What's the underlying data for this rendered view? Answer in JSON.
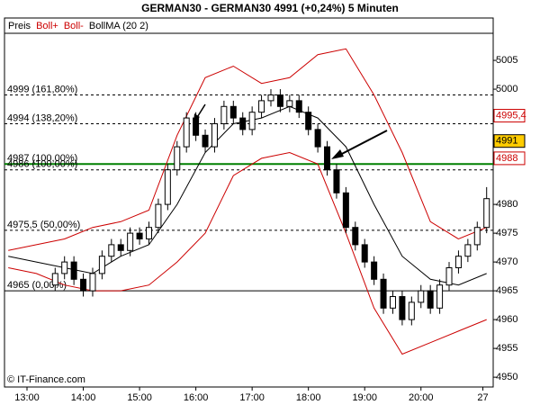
{
  "chart_data": {
    "type": "candlestick",
    "title": "GERMAN30 - GERMAN30     4991 (+0,24%)     5 Minuten",
    "legend": [
      "Preis",
      "Boll+",
      "Boll-",
      "BollMA (20 2)"
    ],
    "legend_colors": [
      "#000000",
      "#cc0000",
      "#cc0000",
      "#000000"
    ],
    "watermark": "© IT-Finance.com",
    "xlim": [
      756,
      1277
    ],
    "xticks": [
      {
        "value": 780,
        "label": "13:00"
      },
      {
        "value": 840,
        "label": "14:00"
      },
      {
        "value": 900,
        "label": "15:00"
      },
      {
        "value": 960,
        "label": "16:00"
      },
      {
        "value": 1020,
        "label": "17:00"
      },
      {
        "value": 1080,
        "label": "18:00"
      },
      {
        "value": 1140,
        "label": "19:00"
      },
      {
        "value": 1200,
        "label": "20:00"
      },
      {
        "value": 1266,
        "label": "27"
      }
    ],
    "ylim": [
      4948.3,
      5009.7
    ],
    "yticks": [
      4950,
      4955,
      4960,
      4965,
      4970,
      4975,
      4980,
      5000,
      5005
    ],
    "candles": {
      "x": [
        810,
        820,
        830,
        840,
        850,
        860,
        870,
        880,
        890,
        900,
        910,
        920,
        930,
        940,
        950,
        960,
        970,
        980,
        990,
        1000,
        1010,
        1020,
        1030,
        1040,
        1050,
        1060,
        1070,
        1080,
        1090,
        1100,
        1110,
        1120,
        1130,
        1140,
        1150,
        1160,
        1170,
        1180,
        1190,
        1200,
        1210,
        1220,
        1230,
        1240,
        1250,
        1260,
        1270
      ],
      "open": [
        4966,
        4968,
        4970,
        4967,
        4965,
        4968,
        4971,
        4973,
        4972,
        4975,
        4974,
        4976,
        4980,
        4986,
        4990,
        4995,
        4992,
        4990,
        4994,
        4997,
        4995,
        4993,
        4996,
        4998,
        4999,
        4997,
        4998,
        4996,
        4993,
        4990,
        4986,
        4982,
        4976,
        4973,
        4970,
        4967,
        4962,
        4964,
        4960,
        4963,
        4965,
        4962,
        4966,
        4969,
        4971,
        4973,
        4976
      ],
      "high": [
        4969,
        4971,
        4971,
        4968,
        4969,
        4972,
        4974,
        4974,
        4976,
        4976,
        4977,
        4981,
        4987,
        4991,
        4996,
        4996,
        4993,
        4995,
        4998,
        4998,
        4996,
        4997,
        4999,
        5000,
        5000,
        4999,
        4999,
        4997,
        4994,
        4991,
        4987,
        4983,
        4977,
        4974,
        4971,
        4968,
        4965,
        4965,
        4964,
        4966,
        4966,
        4967,
        4970,
        4972,
        4974,
        4977,
        4983
      ],
      "low": [
        4965,
        4967,
        4966,
        4964,
        4964,
        4967,
        4970,
        4971,
        4971,
        4973,
        4973,
        4975,
        4979,
        4985,
        4989,
        4991,
        4989,
        4989,
        4993,
        4994,
        4992,
        4992,
        4995,
        4997,
        4996,
        4996,
        4995,
        4992,
        4989,
        4985,
        4981,
        4975,
        4972,
        4969,
        4966,
        4961,
        4961,
        4959,
        4959,
        4962,
        4961,
        4961,
        4965,
        4968,
        4970,
        4972,
        4975
      ],
      "close": [
        4968,
        4970,
        4967,
        4965,
        4968,
        4971,
        4973,
        4972,
        4975,
        4974,
        4976,
        4980,
        4986,
        4990,
        4995,
        4992,
        4990,
        4994,
        4997,
        4995,
        4993,
        4996,
        4998,
        4999,
        4997,
        4998,
        4996,
        4993,
        4990,
        4986,
        4982,
        4976,
        4973,
        4970,
        4967,
        4962,
        4964,
        4960,
        4963,
        4965,
        4962,
        4966,
        4969,
        4971,
        4973,
        4976,
        4981
      ]
    },
    "series": [
      {
        "name": "Boll+",
        "color": "#cc0000",
        "x": [
          760,
          790,
          820,
          850,
          880,
          910,
          940,
          970,
          1000,
          1030,
          1060,
          1090,
          1120,
          1150,
          1180,
          1210,
          1240,
          1270
        ],
        "values": [
          4972,
          4973,
          4974,
          4976,
          4977,
          4979,
          4992,
          5002,
          5004,
          5001,
          5002,
          5006,
          5007,
          4999,
          4989,
          4977,
          4974,
          4976
        ]
      },
      {
        "name": "Boll-",
        "color": "#cc0000",
        "x": [
          760,
          790,
          820,
          850,
          880,
          910,
          940,
          970,
          1000,
          1030,
          1060,
          1090,
          1120,
          1150,
          1180,
          1210,
          1240,
          1270
        ],
        "values": [
          4969,
          4968,
          4966,
          4965,
          4965,
          4966,
          4970,
          4975,
          4985,
          4988,
          4989,
          4987,
          4975,
          4962,
          4954,
          4956,
          4958,
          4960
        ]
      },
      {
        "name": "BollMA (20 2)",
        "color": "#000000",
        "x": [
          760,
          790,
          820,
          850,
          880,
          910,
          940,
          970,
          1000,
          1030,
          1060,
          1090,
          1120,
          1150,
          1180,
          1210,
          1240,
          1270
        ],
        "values": [
          4971,
          4970,
          4969,
          4968,
          4971,
          4973,
          4980,
          4989,
          4994,
          4995,
          4997,
          4995,
          4990,
          4980,
          4971,
          4967,
          4966,
          4968
        ]
      }
    ],
    "levels": [
      {
        "label": "4999 (161,80%)",
        "value": 4999,
        "color": "#000000",
        "dashed": true
      },
      {
        "label": "4994 (138,20%)",
        "value": 4994,
        "color": "#000000",
        "dashed": true
      },
      {
        "label": "4987 (100,00%)",
        "value": 4987,
        "color": "#008000",
        "dashed": false
      },
      {
        "label": "4986 (100,00%)",
        "value": 4986,
        "color": "#000000",
        "dashed": true
      },
      {
        "label": "4975,5 (50,00%)",
        "value": 4975.5,
        "color": "#000000",
        "dashed": true
      },
      {
        "label": "4965 (0,00%)",
        "value": 4965,
        "color": "#000000",
        "dashed": false
      }
    ],
    "price_boxes": [
      {
        "label": "4995,4",
        "value": 4995.4,
        "color": "#ffffff",
        "border": "#cc0000",
        "text_color": "#cc0000"
      },
      {
        "label": "4991",
        "value": 4991,
        "color": "#ffcc00",
        "border": "#000000",
        "text_color": "#000000"
      },
      {
        "label": "4988",
        "value": 4988,
        "color": "#ffffff",
        "border": "#cc0000",
        "text_color": "#cc0000"
      }
    ]
  }
}
